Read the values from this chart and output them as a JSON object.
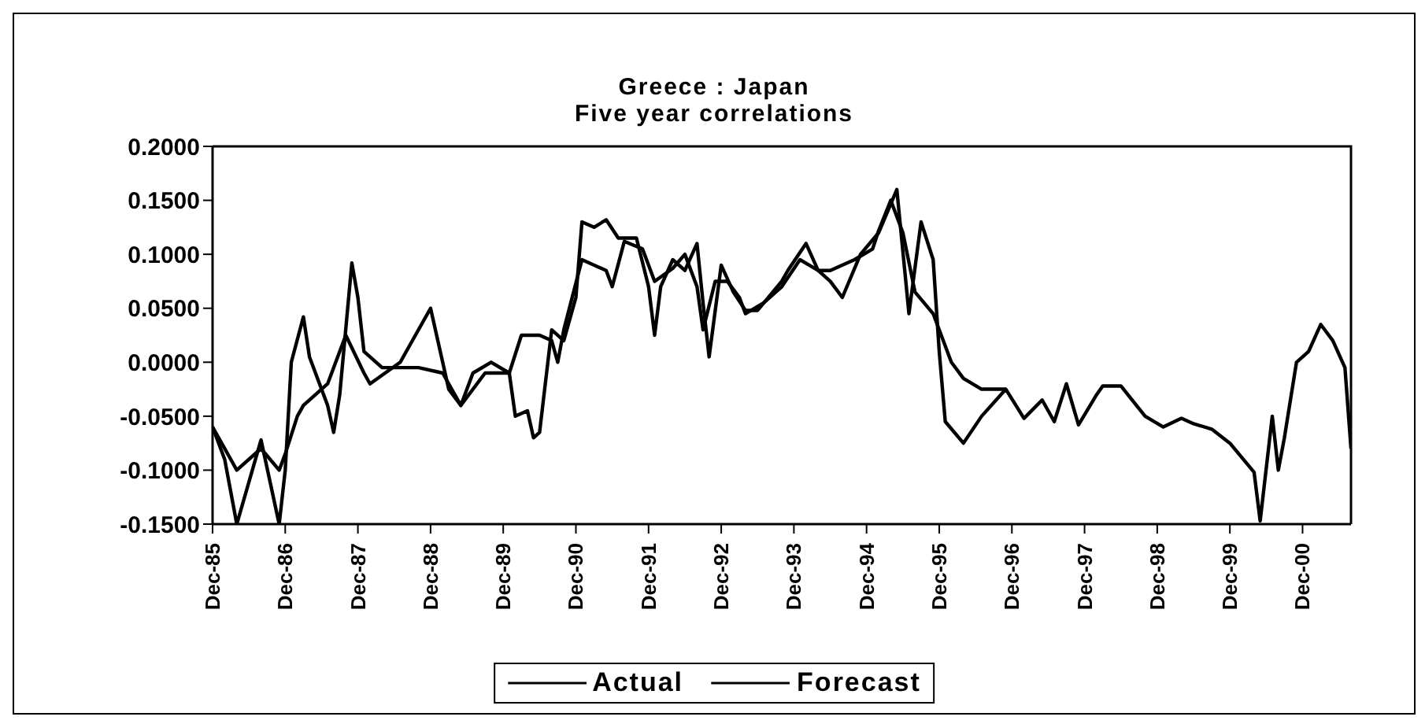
{
  "chart_data": {
    "type": "line",
    "title": "Greece : Japan",
    "subtitle": "Five year correlations",
    "xlim": [
      "1985-12",
      "2001-08"
    ],
    "xticks": [
      {
        "value": "1985-12",
        "label": "Dec-85"
      },
      {
        "value": "1986-12",
        "label": "Dec-86"
      },
      {
        "value": "1987-12",
        "label": "Dec-87"
      },
      {
        "value": "1988-12",
        "label": "Dec-88"
      },
      {
        "value": "1989-12",
        "label": "Dec-89"
      },
      {
        "value": "1990-12",
        "label": "Dec-90"
      },
      {
        "value": "1991-12",
        "label": "Dec-91"
      },
      {
        "value": "1992-12",
        "label": "Dec-92"
      },
      {
        "value": "1993-12",
        "label": "Dec-93"
      },
      {
        "value": "1994-12",
        "label": "Dec-94"
      },
      {
        "value": "1995-12",
        "label": "Dec-95"
      },
      {
        "value": "1996-12",
        "label": "Dec-96"
      },
      {
        "value": "1997-12",
        "label": "Dec-97"
      },
      {
        "value": "1998-12",
        "label": "Dec-98"
      },
      {
        "value": "1999-12",
        "label": "Dec-99"
      },
      {
        "value": "2000-12",
        "label": "Dec-00"
      }
    ],
    "ylim": [
      -0.15,
      0.2
    ],
    "yticks": [
      {
        "value": -0.15,
        "label": "-0.1500"
      },
      {
        "value": -0.1,
        "label": "-0.1000"
      },
      {
        "value": -0.05,
        "label": "-0.0500"
      },
      {
        "value": 0,
        "label": "0.0000"
      },
      {
        "value": 0.05,
        "label": "0.0500"
      },
      {
        "value": 0.1,
        "label": "0.1000"
      },
      {
        "value": 0.15,
        "label": "0.1500"
      },
      {
        "value": 0.2,
        "label": "0.2000"
      }
    ],
    "legend": "bottom",
    "marker": "none",
    "line_style": "solid",
    "series": [
      {
        "name": "Actual",
        "color": "#000000",
        "x": [
          "1985-12",
          "1986-02",
          "1986-04",
          "1986-08",
          "1986-11",
          "1986-12",
          "1987-01",
          "1987-03",
          "1987-04",
          "1987-07",
          "1987-08",
          "1987-09",
          "1987-11",
          "1987-12",
          "1988-01",
          "1988-04",
          "1988-10",
          "1989-02",
          "1989-05",
          "1989-09",
          "1990-01",
          "1990-02",
          "1990-04",
          "1990-05",
          "1990-06",
          "1990-08",
          "1990-10",
          "1990-12",
          "1991-01",
          "1991-03",
          "1991-05",
          "1991-07",
          "1991-10",
          "1991-12",
          "1992-01",
          "1992-02",
          "1992-04",
          "1992-06",
          "1992-08",
          "1992-09",
          "1992-10",
          "1992-12",
          "1993-02",
          "1993-04",
          "1993-06",
          "1993-10",
          "1993-11",
          "1994-02",
          "1994-04",
          "1994-06",
          "1994-08",
          "1994-11",
          "1995-02",
          "1995-05",
          "1995-07",
          "1995-09",
          "1995-11",
          "1995-12",
          "1996-01",
          "1996-04",
          "1996-07",
          "1996-11",
          "1997-02",
          "1997-05",
          "1997-07",
          "1997-09",
          "1997-11",
          "1998-02",
          "1998-03",
          "1998-06",
          "1998-10",
          "1999-01",
          "1999-04",
          "1999-06",
          "1999-09",
          "1999-12",
          "2000-04",
          "2000-05",
          "2000-07",
          "2000-08",
          "2000-09",
          "2000-11",
          "2001-01",
          "2001-03",
          "2001-05",
          "2001-07",
          "2001-08"
        ],
        "values": [
          -0.06,
          -0.09,
          -0.15,
          -0.072,
          -0.15,
          -0.1,
          0.0,
          0.042,
          0.005,
          -0.04,
          -0.065,
          -0.03,
          0.092,
          0.06,
          0.01,
          -0.005,
          -0.005,
          -0.01,
          -0.04,
          -0.01,
          -0.01,
          -0.05,
          -0.045,
          -0.07,
          -0.065,
          0.03,
          0.02,
          0.06,
          0.13,
          0.125,
          0.132,
          0.115,
          0.115,
          0.07,
          0.025,
          0.07,
          0.095,
          0.085,
          0.11,
          0.055,
          0.005,
          0.09,
          0.065,
          0.048,
          0.048,
          0.075,
          0.085,
          0.11,
          0.085,
          0.075,
          0.06,
          0.1,
          0.12,
          0.16,
          0.045,
          0.13,
          0.095,
          0.01,
          -0.055,
          -0.075,
          -0.05,
          -0.025,
          -0.052,
          -0.035,
          -0.055,
          -0.02,
          -0.058,
          -0.03,
          -0.022,
          -0.022,
          -0.05,
          -0.06,
          -0.052,
          -0.057,
          -0.062,
          -0.075,
          -0.102,
          -0.147,
          -0.05,
          -0.1,
          -0.07,
          0.0,
          0.01,
          0.035,
          0.02,
          -0.005,
          -0.08
        ]
      },
      {
        "name": "Forecast",
        "color": "#000000",
        "x": [
          "1985-12",
          "1986-04",
          "1986-08",
          "1986-11",
          "1986-12",
          "1987-02",
          "1987-03",
          "1987-07",
          "1987-10",
          "1988-01",
          "1988-02",
          "1988-07",
          "1988-12",
          "1989-03",
          "1989-05",
          "1989-07",
          "1989-10",
          "1990-01",
          "1990-03",
          "1990-06",
          "1990-08",
          "1990-09",
          "1990-10",
          "1991-01",
          "1991-05",
          "1991-06",
          "1991-08",
          "1991-11",
          "1992-01",
          "1992-04",
          "1992-06",
          "1992-08",
          "1992-09",
          "1992-11",
          "1993-01",
          "1993-03",
          "1993-04",
          "1993-07",
          "1993-10",
          "1994-01",
          "1994-04",
          "1994-06",
          "1994-10",
          "1995-01",
          "1995-02",
          "1995-04",
          "1995-06",
          "1995-08",
          "1995-11",
          "1996-02",
          "1996-04",
          "1996-07",
          "1996-11"
        ],
        "values": [
          -0.06,
          -0.1,
          -0.08,
          -0.1,
          -0.085,
          -0.05,
          -0.04,
          -0.02,
          0.025,
          -0.01,
          -0.02,
          0.0,
          0.05,
          -0.025,
          -0.04,
          -0.01,
          0.0,
          -0.01,
          0.025,
          0.025,
          0.02,
          0.0,
          0.03,
          0.095,
          0.085,
          0.07,
          0.112,
          0.105,
          0.075,
          0.087,
          0.1,
          0.07,
          0.03,
          0.075,
          0.075,
          0.06,
          0.045,
          0.055,
          0.07,
          0.095,
          0.085,
          0.085,
          0.095,
          0.105,
          0.122,
          0.15,
          0.12,
          0.065,
          0.045,
          0.0,
          -0.015,
          -0.025,
          -0.025
        ]
      }
    ]
  }
}
